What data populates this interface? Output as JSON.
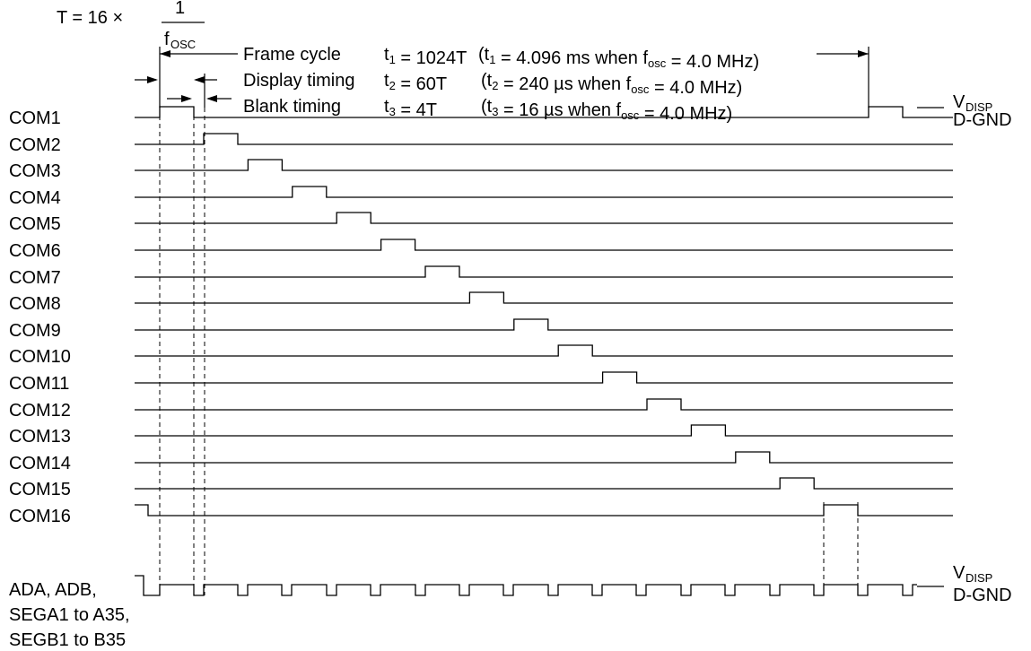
{
  "formula": {
    "lhs": "T = 16 ×",
    "numerator": "1",
    "denominator": "f",
    "denominator_sub": "OSC"
  },
  "timing_labels": {
    "frame_cycle": "Frame cycle",
    "display_timing": "Display timing",
    "blank_timing": "Blank timing"
  },
  "params": [
    {
      "sym": "t",
      "sub": "1",
      "eq": " = 1024T",
      "note_a": "(t",
      "note_sub": "1",
      "note_b": " = 4.096 ms when f",
      "note_sub2": "osc",
      "note_c": " = 4.0 MHz)"
    },
    {
      "sym": "t",
      "sub": "2",
      "eq": " = 60T",
      "note_a": "(t",
      "note_sub": "2",
      "note_b": " = 240 µs when f",
      "note_sub2": "osc",
      "note_c": " = 4.0 MHz)"
    },
    {
      "sym": "t",
      "sub": "3",
      "eq": " = 4T",
      "note_a": "(t",
      "note_sub": "3",
      "note_b": " = 16 µs when f",
      "note_sub2": "osc",
      "note_c": " = 4.0 MHz)"
    }
  ],
  "com_labels": [
    "COM1",
    "COM2",
    "COM3",
    "COM4",
    "COM5",
    "COM6",
    "COM7",
    "COM8",
    "COM9",
    "COM10",
    "COM11",
    "COM12",
    "COM13",
    "COM14",
    "COM15",
    "COM16"
  ],
  "seg_labels": [
    "ADA, ADB,",
    "SEGA1 to A35,",
    "SEGB1 to B35"
  ],
  "levels": {
    "high": "V",
    "high_sub": "DISP",
    "low": "D-GND"
  }
}
